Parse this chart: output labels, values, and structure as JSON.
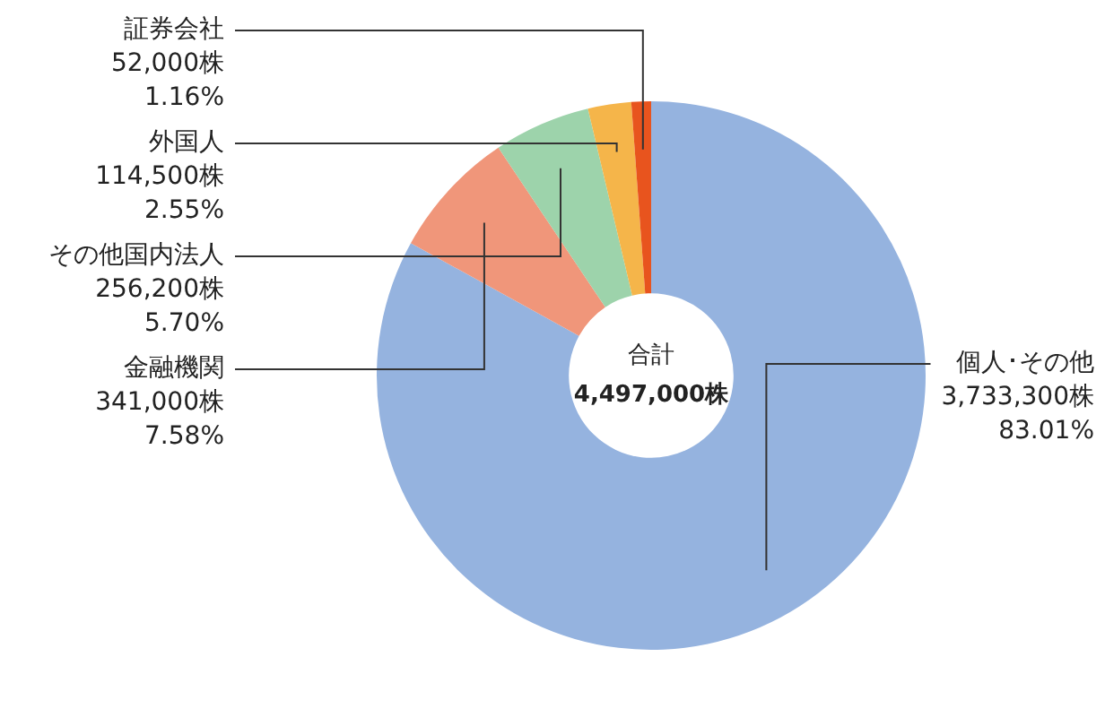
{
  "chart_data": {
    "type": "donut",
    "categories": [
      "個人･その他",
      "金融機関",
      "その他国内法人",
      "外国人",
      "証券会社"
    ],
    "values": [
      3733300,
      341000,
      256200,
      114500,
      52000
    ],
    "colors": [
      "#95b3df",
      "#f0967a",
      "#9dd3ab",
      "#f5b54a",
      "#e8541e"
    ],
    "value_labels": [
      "3,733,300株\n83.01%",
      "341,000株\n7.58%",
      "256,200株\n5.70%",
      "114,500株\n2.55%",
      "52,000株\n1.16%"
    ],
    "annotations": [
      "合計",
      "4,497,000株"
    ],
    "legend": false
  }
}
